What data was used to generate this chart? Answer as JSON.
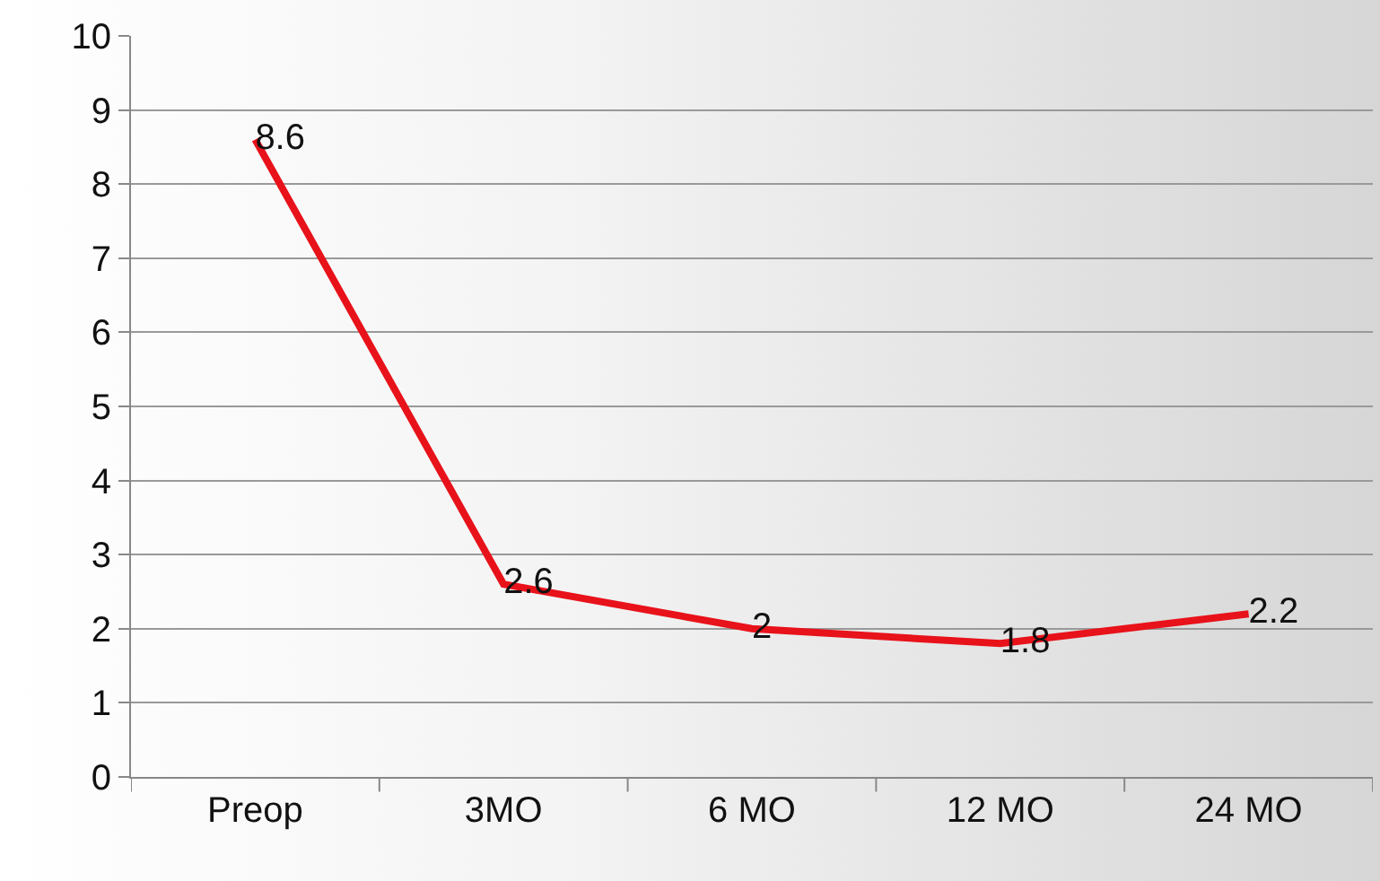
{
  "chart_data": {
    "type": "line",
    "categories": [
      "Preop",
      "3MO",
      "6 MO",
      "12 MO",
      "24 MO"
    ],
    "series": [
      {
        "color": "#e8121a",
        "values": [
          8.6,
          2.6,
          2,
          1.8,
          2.2
        ]
      }
    ],
    "ylim": [
      0,
      10
    ],
    "yticks": [
      0,
      1,
      2,
      3,
      4,
      5,
      6,
      7,
      8,
      9,
      10
    ],
    "grid": "y",
    "marker": "none",
    "line_style": "solid",
    "data_labels": true
  }
}
